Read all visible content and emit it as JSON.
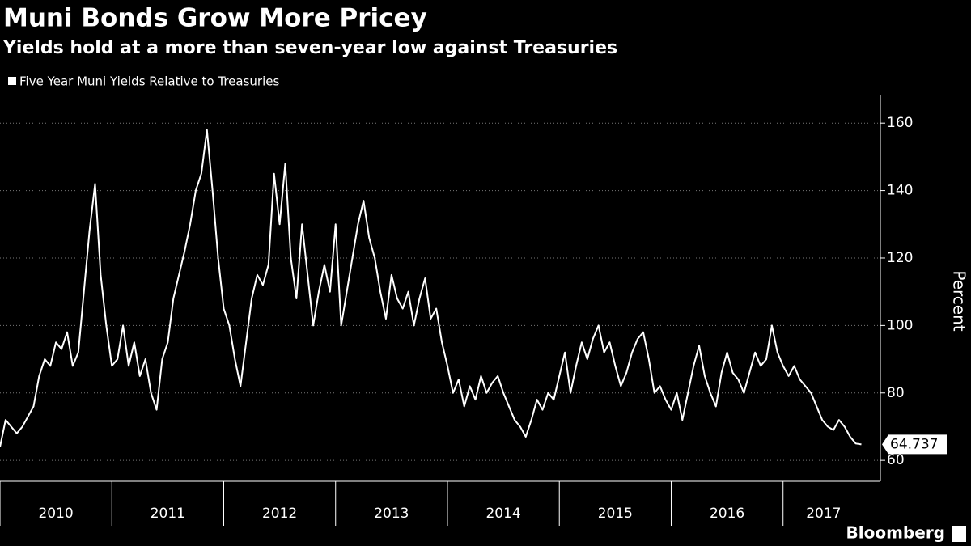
{
  "chart_data": {
    "type": "line",
    "title": "Muni Bonds Grow More Pricey",
    "subtitle": "Yields hold at a more than seven-year low against Treasuries",
    "y_label": "Percent",
    "source": "Bloomberg",
    "x": [
      2010.0,
      2010.05,
      2010.1,
      2010.15,
      2010.2,
      2010.25,
      2010.3,
      2010.35,
      2010.4,
      2010.45,
      2010.5,
      2010.55,
      2010.6,
      2010.65,
      2010.7,
      2010.75,
      2010.8,
      2010.85,
      2010.9,
      2010.95,
      2011.0,
      2011.05,
      2011.1,
      2011.15,
      2011.2,
      2011.25,
      2011.3,
      2011.35,
      2011.4,
      2011.45,
      2011.5,
      2011.55,
      2011.6,
      2011.65,
      2011.7,
      2011.75,
      2011.8,
      2011.85,
      2011.9,
      2011.95,
      2012.0,
      2012.05,
      2012.1,
      2012.15,
      2012.2,
      2012.25,
      2012.3,
      2012.35,
      2012.4,
      2012.45,
      2012.5,
      2012.55,
      2012.6,
      2012.65,
      2012.7,
      2012.75,
      2012.8,
      2012.85,
      2012.9,
      2012.95,
      2013.0,
      2013.05,
      2013.1,
      2013.15,
      2013.2,
      2013.25,
      2013.3,
      2013.35,
      2013.4,
      2013.45,
      2013.5,
      2013.55,
      2013.6,
      2013.65,
      2013.7,
      2013.75,
      2013.8,
      2013.85,
      2013.9,
      2013.95,
      2014.0,
      2014.05,
      2014.1,
      2014.15,
      2014.2,
      2014.25,
      2014.3,
      2014.35,
      2014.4,
      2014.45,
      2014.5,
      2014.55,
      2014.6,
      2014.65,
      2014.7,
      2014.75,
      2014.8,
      2014.85,
      2014.9,
      2014.95,
      2015.0,
      2015.05,
      2015.1,
      2015.15,
      2015.2,
      2015.25,
      2015.3,
      2015.35,
      2015.4,
      2015.45,
      2015.5,
      2015.55,
      2015.6,
      2015.65,
      2015.7,
      2015.75,
      2015.8,
      2015.85,
      2015.9,
      2015.95,
      2016.0,
      2016.05,
      2016.1,
      2016.15,
      2016.2,
      2016.25,
      2016.3,
      2016.35,
      2016.4,
      2016.45,
      2016.5,
      2016.55,
      2016.6,
      2016.65,
      2016.7,
      2016.75,
      2016.8,
      2016.85,
      2016.9,
      2016.95,
      2017.0,
      2017.05,
      2017.1,
      2017.15,
      2017.2,
      2017.25,
      2017.3,
      2017.35,
      2017.4,
      2017.45,
      2017.5,
      2017.55,
      2017.6,
      2017.65,
      2017.7
    ],
    "series": [
      {
        "name": "Five Year Muni Yields Relative to Treasuries",
        "color": "#ffffff",
        "values": [
          64,
          72,
          70,
          68,
          70,
          73,
          76,
          85,
          90,
          88,
          95,
          93,
          98,
          88,
          92,
          110,
          128,
          142,
          115,
          100,
          88,
          90,
          100,
          88,
          95,
          85,
          90,
          80,
          75,
          90,
          95,
          108,
          115,
          122,
          130,
          140,
          145,
          158,
          140,
          120,
          105,
          100,
          90,
          82,
          95,
          108,
          115,
          112,
          118,
          145,
          130,
          148,
          120,
          108,
          130,
          115,
          100,
          110,
          118,
          110,
          130,
          100,
          110,
          120,
          130,
          137,
          126,
          120,
          110,
          102,
          115,
          108,
          105,
          110,
          100,
          108,
          114,
          102,
          105,
          95,
          88,
          80,
          84,
          76,
          82,
          78,
          85,
          80,
          83,
          85,
          80,
          76,
          72,
          70,
          67,
          72,
          78,
          75,
          80,
          78,
          85,
          92,
          80,
          88,
          95,
          90,
          96,
          100,
          92,
          95,
          88,
          82,
          86,
          92,
          96,
          98,
          90,
          80,
          82,
          78,
          75,
          80,
          72,
          80,
          88,
          94,
          85,
          80,
          76,
          86,
          92,
          86,
          84,
          80,
          86,
          92,
          88,
          90,
          100,
          92,
          88,
          85,
          88,
          84,
          82,
          80,
          76,
          72,
          70,
          69,
          72,
          70,
          67,
          65,
          64.737
        ]
      }
    ],
    "xlim": [
      2010,
      2017.87
    ],
    "xticks": [
      2010,
      2011,
      2012,
      2013,
      2014,
      2015,
      2016,
      2017
    ],
    "ylim": [
      53.8,
      168.2
    ],
    "yticks": [
      60,
      80,
      100,
      120,
      140,
      160
    ],
    "grid": true
  }
}
